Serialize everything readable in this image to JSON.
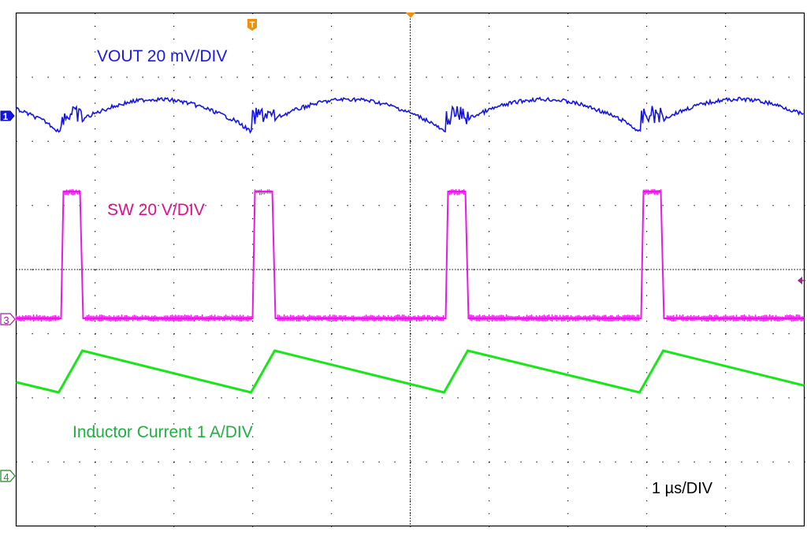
{
  "chart_data": {
    "type": "line",
    "title": "",
    "xlabel": "1 µs/DIV",
    "ylabel": "",
    "grid": true,
    "grid_divisions": {
      "x": 10,
      "y": 8
    },
    "xlim_us": [
      0,
      10
    ],
    "period_us": 2.45,
    "colors": {
      "vout": "#1414e6",
      "sw": "#e619e6",
      "il": "#19e619",
      "trigger": "#f0900a",
      "grid": "#000000"
    },
    "series": [
      {
        "name": "VOUT",
        "label": "VOUT  20 mV/DIV",
        "scale": "20 mV/DIV",
        "channel": 1,
        "description": "Output voltage ripple: slow arch between switching events with ringing spikes at each switch edge",
        "pulse_starts_us": [
          0.57,
          3.0,
          5.45,
          7.93
        ],
        "ripple_pk_pk_mV": 12
      },
      {
        "name": "SW",
        "label": "SW  20 V/DIV",
        "scale": "20 V/DIV",
        "channel": 3,
        "description": "Switch node square pulses",
        "pulses_us": [
          [
            0.57,
            0.84
          ],
          [
            3.0,
            3.28
          ],
          [
            5.45,
            5.73
          ],
          [
            7.93,
            8.21
          ]
        ],
        "high_div": 2.0,
        "low_div": 0.0
      },
      {
        "name": "Inductor Current",
        "label": "Inductor Current  1 A/DIV",
        "scale": "1 A/DIV",
        "channel": 4,
        "description": "Triangular inductor current: fast rise during SW high, slow decay otherwise",
        "peaks_us": [
          0.84,
          3.28,
          5.73,
          8.21
        ],
        "valleys_us": [
          0.54,
          2.98,
          5.43,
          7.91
        ],
        "peak_div": 1.97,
        "valley_div": 1.36
      }
    ]
  },
  "labels": {
    "vout": "VOUT  20 mV/DIV",
    "sw": "SW  20 V/DIV",
    "il": "Inductor Current  1 A/DIV",
    "timebase": "1 µs/DIV"
  },
  "markers": {
    "ch1": "1",
    "ch3": "3",
    "ch4": "4",
    "trigger": "T"
  }
}
